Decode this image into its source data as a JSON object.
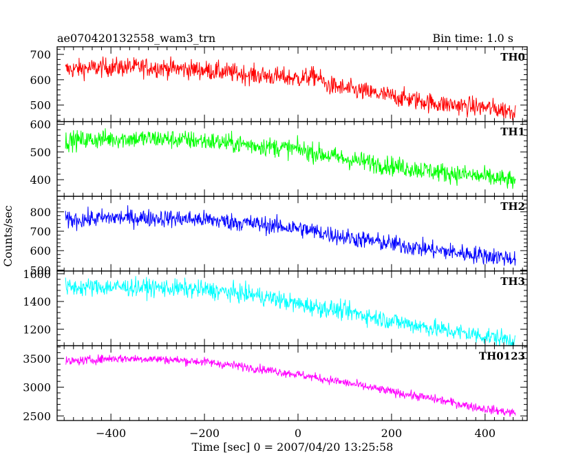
{
  "header": {
    "title": "ae070420132558_wam3_trn",
    "bin_time": "Bin time: 1.0 s"
  },
  "axes": {
    "xlabel": "Time [sec] 0 = 2007/04/20 13:25:58",
    "ylabel": "Counts/sec"
  },
  "chart_data": {
    "type": "line",
    "title": "ae070420132558_wam3_trn",
    "subtitle": "Bin time: 1.0 s",
    "xlabel": "Time [sec] 0 = 2007/04/20 13:25:58",
    "ylabel": "Counts/sec",
    "xlim": [
      -515,
      490
    ],
    "x_ticks": [
      -400,
      -200,
      0,
      200,
      400
    ],
    "x_range": [
      -497,
      465
    ],
    "series": [
      {
        "name": "TH0",
        "color": "#ff0000",
        "ylim": [
          435,
          730
        ],
        "y_ticks": [
          500,
          600,
          700
        ],
        "noise": 35,
        "trend": [
          [
            -497,
            640
          ],
          [
            -400,
            650
          ],
          [
            -300,
            648
          ],
          [
            -200,
            638
          ],
          [
            -100,
            620
          ],
          [
            0,
            605
          ],
          [
            40,
            615
          ],
          [
            60,
            580
          ],
          [
            100,
            565
          ],
          [
            200,
            535
          ],
          [
            300,
            505
          ],
          [
            400,
            490
          ],
          [
            465,
            475
          ]
        ]
      },
      {
        "name": "TH1",
        "color": "#00ff00",
        "ylim": [
          340,
          610
        ],
        "y_ticks": [
          400,
          500,
          600
        ],
        "noise": 32,
        "trend": [
          [
            -497,
            540
          ],
          [
            -400,
            548
          ],
          [
            -300,
            548
          ],
          [
            -200,
            540
          ],
          [
            -100,
            525
          ],
          [
            0,
            510
          ],
          [
            100,
            475
          ],
          [
            200,
            450
          ],
          [
            300,
            428
          ],
          [
            400,
            410
          ],
          [
            465,
            395
          ]
        ]
      },
      {
        "name": "TH2",
        "color": "#0000ff",
        "ylim": [
          495,
          880
        ],
        "y_ticks": [
          500,
          600,
          700,
          800
        ],
        "noise": 42,
        "trend": [
          [
            -497,
            755
          ],
          [
            -400,
            770
          ],
          [
            -300,
            768
          ],
          [
            -200,
            760
          ],
          [
            -100,
            740
          ],
          [
            0,
            715
          ],
          [
            100,
            670
          ],
          [
            200,
            635
          ],
          [
            300,
            600
          ],
          [
            400,
            575
          ],
          [
            465,
            560
          ]
        ]
      },
      {
        "name": "TH3",
        "color": "#00ffff",
        "ylim": [
          1080,
          1620
        ],
        "y_ticks": [
          1200,
          1400,
          1600
        ],
        "noise": 60,
        "trend": [
          [
            -497,
            1500
          ],
          [
            -400,
            1505
          ],
          [
            -300,
            1500
          ],
          [
            -200,
            1485
          ],
          [
            -100,
            1450
          ],
          [
            -50,
            1420
          ],
          [
            0,
            1380
          ],
          [
            100,
            1330
          ],
          [
            200,
            1260
          ],
          [
            300,
            1200
          ],
          [
            400,
            1150
          ],
          [
            465,
            1120
          ]
        ]
      },
      {
        "name": "TH0123",
        "color": "#ff00ff",
        "ylim": [
          2420,
          3720
        ],
        "y_ticks": [
          2500,
          3000,
          3500
        ],
        "noise": 70,
        "trend": [
          [
            -497,
            3440
          ],
          [
            -400,
            3500
          ],
          [
            -300,
            3490
          ],
          [
            -200,
            3440
          ],
          [
            -100,
            3340
          ],
          [
            0,
            3220
          ],
          [
            100,
            3080
          ],
          [
            200,
            2920
          ],
          [
            300,
            2780
          ],
          [
            400,
            2620
          ],
          [
            465,
            2550
          ]
        ]
      }
    ]
  }
}
